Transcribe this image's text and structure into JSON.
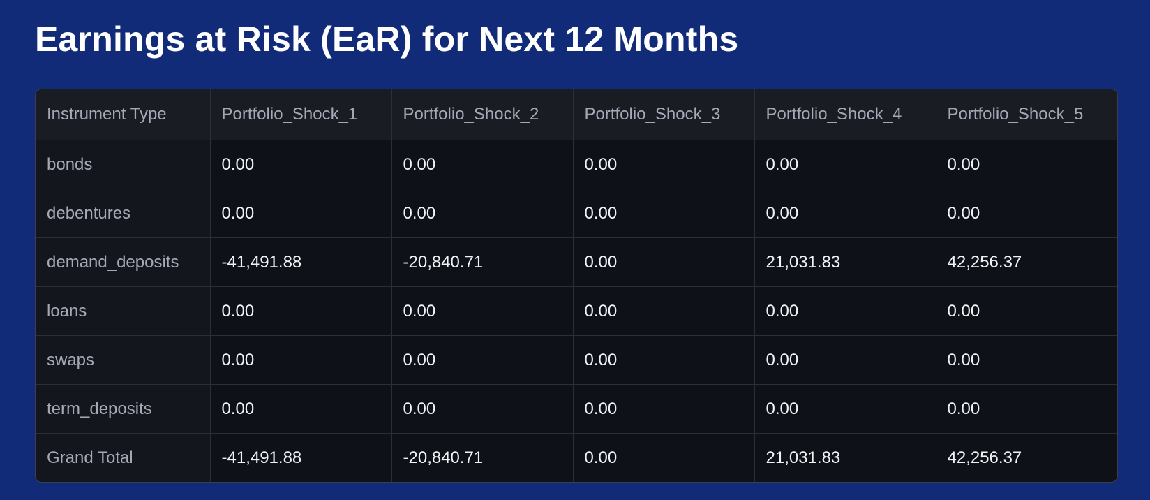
{
  "title": "Earnings at Risk (EaR) for Next 12 Months",
  "table": {
    "headers": [
      "Instrument Type",
      "Portfolio_Shock_1",
      "Portfolio_Shock_2",
      "Portfolio_Shock_3",
      "Portfolio_Shock_4",
      "Portfolio_Shock_5"
    ],
    "rows": [
      {
        "label": "bonds",
        "values": [
          "0.00",
          "0.00",
          "0.00",
          "0.00",
          "0.00"
        ]
      },
      {
        "label": "debentures",
        "values": [
          "0.00",
          "0.00",
          "0.00",
          "0.00",
          "0.00"
        ]
      },
      {
        "label": "demand_deposits",
        "values": [
          "-41,491.88",
          "-20,840.71",
          "0.00",
          "21,031.83",
          "42,256.37"
        ]
      },
      {
        "label": "loans",
        "values": [
          "0.00",
          "0.00",
          "0.00",
          "0.00",
          "0.00"
        ]
      },
      {
        "label": "swaps",
        "values": [
          "0.00",
          "0.00",
          "0.00",
          "0.00",
          "0.00"
        ]
      },
      {
        "label": "term_deposits",
        "values": [
          "0.00",
          "0.00",
          "0.00",
          "0.00",
          "0.00"
        ]
      },
      {
        "label": "Grand Total",
        "values": [
          "-41,491.88",
          "-20,840.71",
          "0.00",
          "21,031.83",
          "42,256.37"
        ]
      }
    ]
  },
  "colors": {
    "page_background": "#112b78",
    "table_background": "#0e1117",
    "header_text": "#a5a9b6",
    "cell_text": "#f0f2f6"
  }
}
